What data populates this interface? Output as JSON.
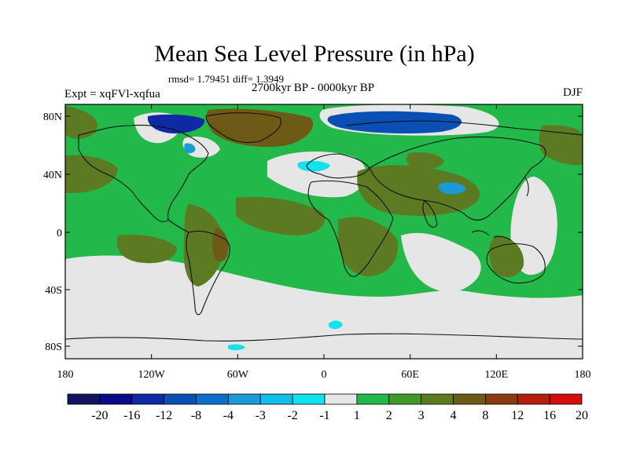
{
  "title": "Mean Sea Level Pressure (in hPa)",
  "stats": "rmsd= 1.79451 diff= 1.3949",
  "experiment": "Expt = xqFVl-xqfua",
  "period": "2700kyr BP - 0000kyr BP",
  "season": "DJF",
  "lat_ticks": [
    "80N",
    "40N",
    "0",
    "40S",
    "80S"
  ],
  "lon_ticks": [
    "180",
    "120W",
    "60W",
    "0",
    "60E",
    "120E",
    "180"
  ],
  "colorbar": {
    "labels": [
      "-20",
      "-16",
      "-12",
      "-8",
      "-4",
      "-3",
      "-2",
      "-1",
      "1",
      "2",
      "3",
      "4",
      "8",
      "12",
      "16",
      "20"
    ],
    "colors": [
      "#13135f",
      "#0b0b8a",
      "#0d2aa3",
      "#0a4fb4",
      "#0f6ec9",
      "#1a9ad6",
      "#12bde6",
      "#12e2ec",
      "#e6e6e6",
      "#22b94a",
      "#3f9a2b",
      "#5c7a22",
      "#6e5a17",
      "#8a3a10",
      "#b2200c",
      "#d40e0e"
    ]
  },
  "palette": {
    "ocean_green": "#22b94a",
    "dark_green": "#3f9a2b",
    "olive": "#5c7a22",
    "brown": "#6e5a17",
    "neutral": "#e6e6e6",
    "light_cyan": "#12e2ec",
    "cyan": "#1a9ad6",
    "blue": "#0a4fb4",
    "dark_blue": "#0d2aa3"
  }
}
